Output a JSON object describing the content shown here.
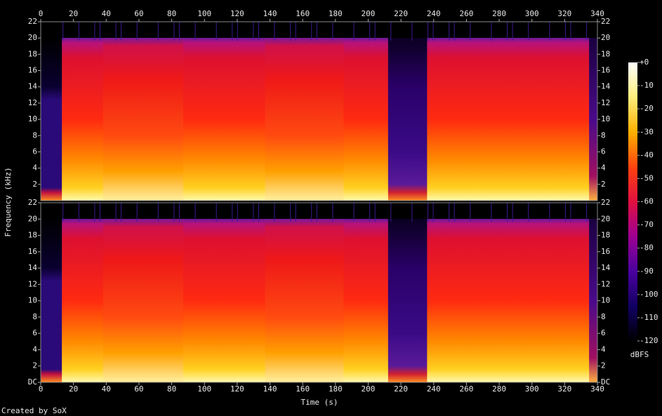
{
  "chart_data": {
    "type": "spectrogram",
    "x_label": "Time (s)",
    "y_label": "Frequency (kHz)",
    "xlim": [
      0,
      340
    ],
    "xticks": [
      0,
      20,
      40,
      60,
      80,
      100,
      120,
      140,
      160,
      180,
      200,
      220,
      240,
      260,
      280,
      300,
      320,
      340
    ],
    "channels": [
      {
        "ylim": [
          0,
          22
        ],
        "yticks": [
          2,
          4,
          6,
          8,
          10,
          12,
          14,
          16,
          18,
          20,
          22
        ]
      },
      {
        "ylim": [
          0,
          22
        ],
        "yticks": [
          {
            "value": 0,
            "label": "DC"
          },
          2,
          4,
          6,
          8,
          10,
          12,
          14,
          16,
          18,
          20,
          22
        ]
      }
    ],
    "colorbar": {
      "label": "dBFS",
      "lim": [
        -120,
        0
      ],
      "ticks": [
        {
          "value": 0,
          "label": "+0"
        },
        -10,
        -20,
        -30,
        -40,
        -50,
        -60,
        -70,
        -80,
        -90,
        -100,
        -110,
        -120
      ]
    }
  },
  "footer": "Created by SoX"
}
